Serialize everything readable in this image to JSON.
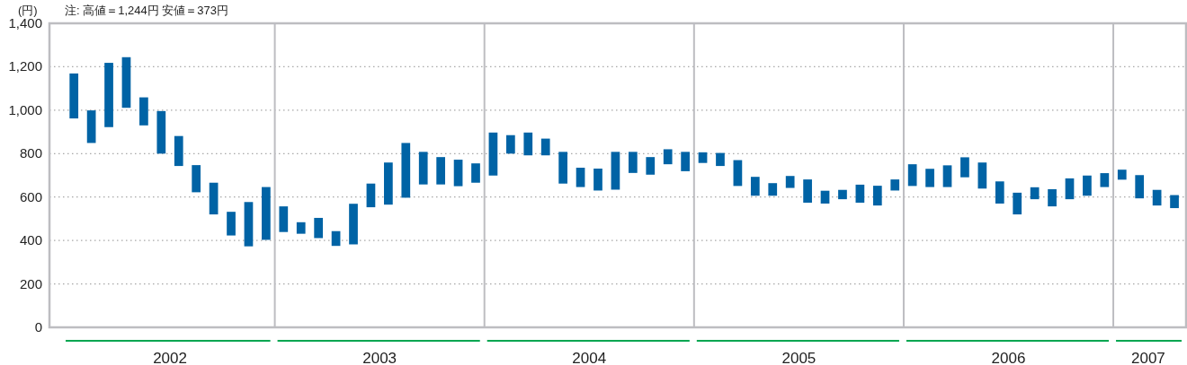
{
  "chart_data": {
    "type": "bar",
    "ylabel": "(円)",
    "annotations": [
      "注: 高値＝1,244円 安値＝373円"
    ],
    "x": [
      "2002-01-16",
      "2002-02-16",
      "2002-03-16",
      "2002-04-16",
      "2002-05-16",
      "2002-06-16",
      "2002-07-16",
      "2002-08-16",
      "2002-09-16",
      "2002-10-16",
      "2002-11-16",
      "2002-12-16",
      "2003-01-16",
      "2003-02-16",
      "2003-03-16",
      "2003-04-16",
      "2003-05-16",
      "2003-06-16",
      "2003-07-16",
      "2003-08-16",
      "2003-09-16",
      "2003-10-16",
      "2003-11-16",
      "2003-12-16",
      "2004-01-16",
      "2004-02-16",
      "2004-03-16",
      "2004-04-16",
      "2004-05-16",
      "2004-06-16",
      "2004-07-16",
      "2004-08-16",
      "2004-09-16",
      "2004-10-16",
      "2004-11-16",
      "2004-12-16",
      "2005-01-16",
      "2005-02-16",
      "2005-03-16",
      "2005-04-16",
      "2005-05-16",
      "2005-06-16",
      "2005-07-16",
      "2005-08-16",
      "2005-09-16",
      "2005-10-16",
      "2005-11-16",
      "2005-12-16",
      "2006-01-16",
      "2006-02-16",
      "2006-03-16",
      "2006-04-16",
      "2006-05-16",
      "2006-06-16",
      "2006-07-16",
      "2006-08-16",
      "2006-09-16",
      "2006-10-16",
      "2006-11-16",
      "2006-12-16",
      "2007-01-16",
      "2007-02-16",
      "2007-03-16",
      "2007-04-16"
    ],
    "values": [
      207,
      150,
      296,
      233,
      129,
      196,
      138,
      125,
      146,
      109,
      204,
      243,
      118,
      53,
      93,
      68,
      187,
      109,
      194,
      252,
      150,
      126,
      122,
      89,
      198,
      85,
      105,
      77,
      146,
      89,
      101,
      174,
      97,
      81,
      69,
      89,
      49,
      60,
      119,
      87,
      58,
      55,
      107,
      59,
      43,
      83,
      91,
      51,
      100,
      84,
      100,
      92,
      120,
      102,
      100,
      55,
      79,
      96,
      93,
      64,
      46,
      107,
      72,
      60
    ],
    "base": [
      962,
      849,
      922,
      1011,
      930,
      800,
      743,
      622,
      520,
      423,
      373,
      403,
      439,
      431,
      411,
      375,
      382,
      553,
      565,
      597,
      658,
      658,
      650,
      666,
      699,
      800,
      792,
      792,
      662,
      646,
      630,
      634,
      711,
      703,
      751,
      719,
      757,
      743,
      651,
      606,
      606,
      642,
      574,
      570,
      590,
      574,
      561,
      630,
      651,
      646,
      646,
      691,
      639,
      570,
      520,
      590,
      557,
      590,
      606,
      646,
      680,
      594,
      561,
      549
    ],
    "color": "#0063a5",
    "xlim": [
      "2001-12-04",
      "2007-05-06"
    ],
    "xticks": [
      {
        "value": "2002-07-01",
        "label": "2002"
      },
      {
        "value": "2003-07-01",
        "label": "2003"
      },
      {
        "value": "2004-07-01",
        "label": "2004"
      },
      {
        "value": "2005-07-01",
        "label": "2005"
      },
      {
        "value": "2006-07-01",
        "label": "2006"
      },
      {
        "value": "2007-03-01",
        "label": "2007"
      }
    ],
    "ylim": [
      0,
      1400
    ],
    "yticks": [
      0,
      200,
      400,
      600,
      800,
      {
        "value": 1000,
        "label": "1,000"
      },
      {
        "value": 1200,
        "label": "1,200"
      },
      {
        "value": 1400,
        "label": "1,400"
      }
    ],
    "grid": "y",
    "ref_lines": [
      {
        "axis": "x",
        "value": "2003-01-01",
        "color": "#bdbdc1",
        "line_style": "solid"
      },
      {
        "axis": "x",
        "value": "2004-01-01",
        "color": "#bdbdc1",
        "line_style": "solid"
      },
      {
        "axis": "x",
        "value": "2005-01-01",
        "color": "#bdbdc1",
        "line_style": "solid"
      },
      {
        "axis": "x",
        "value": "2006-01-01",
        "color": "#bdbdc1",
        "line_style": "solid"
      },
      {
        "axis": "x",
        "value": "2007-01-01",
        "color": "#bdbdc1",
        "line_style": "solid"
      }
    ]
  }
}
